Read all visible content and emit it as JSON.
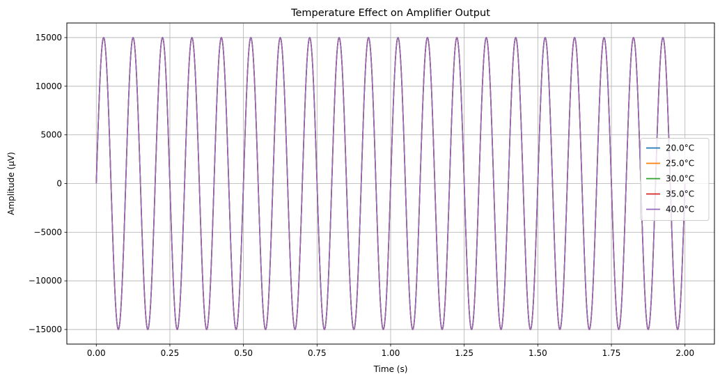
{
  "chart_data": {
    "type": "line",
    "title": "Temperature Effect on Amplifier Output",
    "xlabel": "Time (s)",
    "ylabel": "Amplitude (µV)",
    "xlim": [
      -0.1,
      2.1
    ],
    "ylim": [
      -16500,
      16500
    ],
    "xticks": [
      0.0,
      0.25,
      0.5,
      0.75,
      1.0,
      1.25,
      1.5,
      1.75,
      2.0
    ],
    "xtick_labels": [
      "0.00",
      "0.25",
      "0.50",
      "0.75",
      "1.00",
      "1.25",
      "1.50",
      "1.75",
      "2.00"
    ],
    "yticks": [
      -15000,
      -10000,
      -5000,
      0,
      5000,
      10000,
      15000
    ],
    "ytick_labels": [
      "−15000",
      "−10000",
      "−5000",
      "0",
      "5000",
      "10000",
      "15000"
    ],
    "grid": true,
    "legend_position": "center-right",
    "signal": {
      "amplitude": 15000,
      "frequency_hz": 10,
      "x_start": 0,
      "x_end": 2
    },
    "series": [
      {
        "name": "20.0°C",
        "color": "#1f77b4"
      },
      {
        "name": "25.0°C",
        "color": "#ff7f0e"
      },
      {
        "name": "30.0°C",
        "color": "#2ca02c"
      },
      {
        "name": "35.0°C",
        "color": "#d62728"
      },
      {
        "name": "40.0°C",
        "color": "#9467bd"
      }
    ]
  }
}
